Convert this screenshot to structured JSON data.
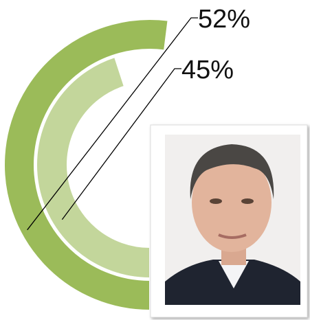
{
  "chart_data": {
    "type": "radial_bar",
    "values": [
      52,
      45
    ],
    "value_labels": [
      "52%",
      "45%"
    ],
    "colors": [
      "#9bbb59",
      "#c3d69b"
    ]
  }
}
